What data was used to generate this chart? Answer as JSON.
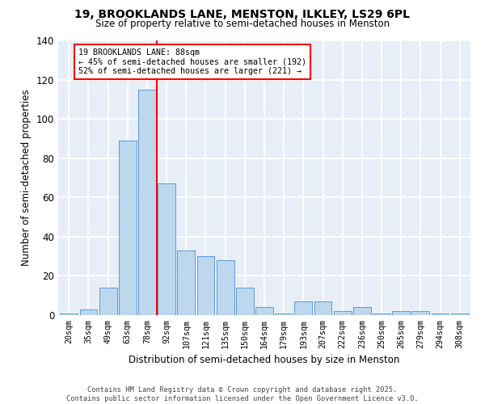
{
  "title1": "19, BROOKLANDS LANE, MENSTON, ILKLEY, LS29 6PL",
  "title2": "Size of property relative to semi-detached houses in Menston",
  "xlabel": "Distribution of semi-detached houses by size in Menston",
  "ylabel": "Number of semi-detached properties",
  "categories": [
    "20sqm",
    "35sqm",
    "49sqm",
    "63sqm",
    "78sqm",
    "92sqm",
    "107sqm",
    "121sqm",
    "135sqm",
    "150sqm",
    "164sqm",
    "179sqm",
    "193sqm",
    "207sqm",
    "222sqm",
    "236sqm",
    "250sqm",
    "265sqm",
    "279sqm",
    "294sqm",
    "308sqm"
  ],
  "values": [
    1,
    3,
    14,
    89,
    115,
    67,
    33,
    30,
    28,
    14,
    4,
    1,
    7,
    7,
    2,
    4,
    1,
    2,
    2,
    1,
    1
  ],
  "bar_color": "#bdd7ee",
  "bar_edge_color": "#5b9bd5",
  "vline_x": 4.5,
  "vline_color": "red",
  "annotation_text": "19 BROOKLANDS LANE: 88sqm\n← 45% of semi-detached houses are smaller (192)\n52% of semi-detached houses are larger (221) →",
  "annotation_box_color": "white",
  "annotation_box_edge_color": "red",
  "ylim": [
    0,
    140
  ],
  "yticks": [
    0,
    20,
    40,
    60,
    80,
    100,
    120,
    140
  ],
  "footer": "Contains HM Land Registry data © Crown copyright and database right 2025.\nContains public sector information licensed under the Open Government Licence v3.0.",
  "background_color": "#e8eef8",
  "grid_color": "white"
}
